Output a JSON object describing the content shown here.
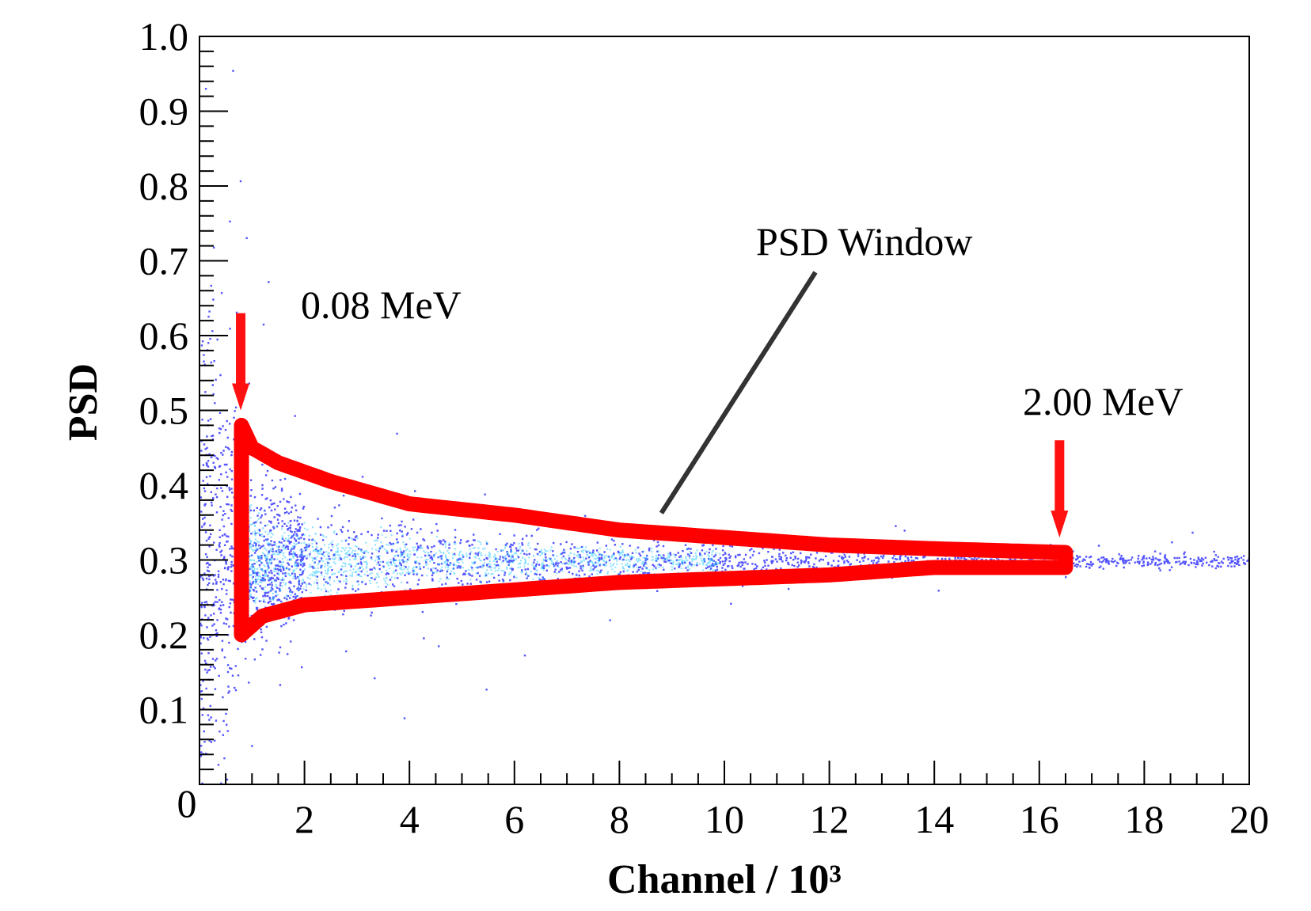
{
  "chart_data": {
    "type": "scatter",
    "title": "",
    "xlabel": "Channel / 10³",
    "ylabel": "PSD",
    "xlim": [
      0,
      20
    ],
    "ylim": [
      0,
      1.0
    ],
    "x_ticks": [
      {
        "value": 2,
        "label": "2"
      },
      {
        "value": 4,
        "label": "4"
      },
      {
        "value": 6,
        "label": "6"
      },
      {
        "value": 8,
        "label": "8"
      },
      {
        "value": 10,
        "label": "10"
      },
      {
        "value": 12,
        "label": "12"
      },
      {
        "value": 14,
        "label": "14"
      },
      {
        "value": 16,
        "label": "16"
      },
      {
        "value": 18,
        "label": "18"
      },
      {
        "value": 20,
        "label": "20"
      }
    ],
    "y_ticks": [
      {
        "value": 0.1,
        "label": "0.1"
      },
      {
        "value": 0.2,
        "label": "0.2"
      },
      {
        "value": 0.3,
        "label": "0.3"
      },
      {
        "value": 0.4,
        "label": "0.4"
      },
      {
        "value": 0.5,
        "label": "0.5"
      },
      {
        "value": 0.6,
        "label": "0.6"
      },
      {
        "value": 0.7,
        "label": "0.7"
      },
      {
        "value": 0.8,
        "label": "0.8"
      },
      {
        "value": 0.9,
        "label": "0.9"
      },
      {
        "value": 1.0,
        "label": "1.0"
      }
    ],
    "origin_label": "0",
    "scatter_band": {
      "color": "#1a1aff",
      "center_psd": 0.3,
      "points": [
        {
          "x": 0.3,
          "psd_low": 0.0,
          "psd_high": 0.75
        },
        {
          "x": 0.8,
          "psd_low": 0.19,
          "psd_high": 0.49
        },
        {
          "x": 2,
          "psd_low": 0.23,
          "psd_high": 0.41
        },
        {
          "x": 4,
          "psd_low": 0.25,
          "psd_high": 0.37
        },
        {
          "x": 6,
          "psd_low": 0.26,
          "psd_high": 0.355
        },
        {
          "x": 8,
          "psd_low": 0.27,
          "psd_high": 0.34
        },
        {
          "x": 10,
          "psd_low": 0.275,
          "psd_high": 0.33
        },
        {
          "x": 12,
          "psd_low": 0.28,
          "psd_high": 0.32
        },
        {
          "x": 14,
          "psd_low": 0.285,
          "psd_high": 0.315
        },
        {
          "x": 16,
          "psd_low": 0.29,
          "psd_high": 0.31
        },
        {
          "x": 20,
          "psd_low": 0.29,
          "psd_high": 0.31
        }
      ]
    },
    "psd_window": {
      "color": "#ff0000",
      "x_start": 0.8,
      "x_end": 16.5,
      "upper": [
        {
          "x": 0.8,
          "psd": 0.48
        },
        {
          "x": 1.0,
          "psd": 0.45
        },
        {
          "x": 1.5,
          "psd": 0.43
        },
        {
          "x": 2.5,
          "psd": 0.405
        },
        {
          "x": 4,
          "psd": 0.375
        },
        {
          "x": 6,
          "psd": 0.36
        },
        {
          "x": 8,
          "psd": 0.34
        },
        {
          "x": 10,
          "psd": 0.33
        },
        {
          "x": 12,
          "psd": 0.32
        },
        {
          "x": 14,
          "psd": 0.315
        },
        {
          "x": 16.5,
          "psd": 0.31
        }
      ],
      "lower": [
        {
          "x": 0.8,
          "psd": 0.2
        },
        {
          "x": 1.2,
          "psd": 0.225
        },
        {
          "x": 2,
          "psd": 0.24
        },
        {
          "x": 4,
          "psd": 0.25
        },
        {
          "x": 6,
          "psd": 0.26
        },
        {
          "x": 8,
          "psd": 0.27
        },
        {
          "x": 10,
          "psd": 0.275
        },
        {
          "x": 12,
          "psd": 0.28
        },
        {
          "x": 14,
          "psd": 0.29
        },
        {
          "x": 16.5,
          "psd": 0.29
        }
      ]
    },
    "annotations": [
      {
        "text": "0.08 MeV",
        "arrow_x": 0.8,
        "arrow_psd_tip": 0.5,
        "arrow_psd_tail": 0.63
      },
      {
        "text": "2.00 MeV",
        "arrow_x": 16.4,
        "arrow_psd_tip": 0.33,
        "arrow_psd_tail": 0.46
      },
      {
        "text": "PSD Window",
        "pointer_x": 8.8,
        "pointer_psd": 0.35
      }
    ]
  }
}
